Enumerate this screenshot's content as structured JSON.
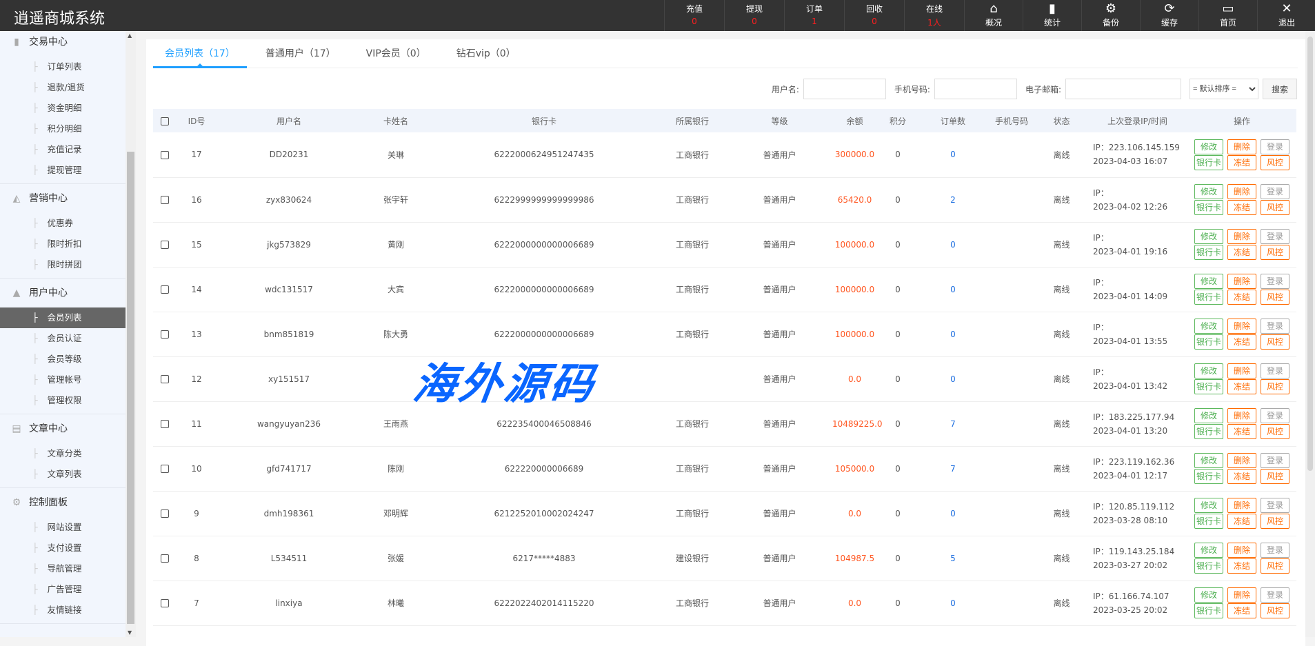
{
  "app": {
    "title": "逍遥商城系统"
  },
  "header": {
    "stats": [
      {
        "label": "充值",
        "value": "0"
      },
      {
        "label": "提现",
        "value": "0"
      },
      {
        "label": "订单",
        "value": "1"
      },
      {
        "label": "回收",
        "value": "0"
      },
      {
        "label": "在线",
        "value": "1人"
      }
    ],
    "buttons": [
      {
        "label": "概况",
        "icon": "home-icon",
        "glyph": "⌂"
      },
      {
        "label": "统计",
        "icon": "bar-chart-icon",
        "glyph": "▮"
      },
      {
        "label": "备份",
        "icon": "gear-icon",
        "glyph": "⚙"
      },
      {
        "label": "缓存",
        "icon": "refresh-icon",
        "glyph": "⟳"
      },
      {
        "label": "首页",
        "icon": "monitor-icon",
        "glyph": "▭"
      },
      {
        "label": "退出",
        "icon": "close-icon",
        "glyph": "✕"
      }
    ]
  },
  "sidebar": {
    "groups": [
      {
        "title": "交易中心",
        "icon": "bar-chart-icon",
        "glyph": "▮",
        "items": [
          "订单列表",
          "退款/退货",
          "资金明细",
          "积分明细",
          "充值记录",
          "提现管理"
        ]
      },
      {
        "title": "营销中心",
        "icon": "trend-chart-icon",
        "glyph": "◭",
        "items": [
          "优惠券",
          "限时折扣",
          "限时拼团"
        ]
      },
      {
        "title": "用户中心",
        "icon": "user-icon",
        "glyph": "▲",
        "items": [
          "会员列表",
          "会员认证",
          "会员等级",
          "管理帐号",
          "管理权限"
        ],
        "active": "会员列表"
      },
      {
        "title": "文章中心",
        "icon": "document-icon",
        "glyph": "▤",
        "items": [
          "文章分类",
          "文章列表"
        ]
      },
      {
        "title": "控制面板",
        "icon": "gear-icon",
        "glyph": "⚙",
        "items": [
          "网站设置",
          "支付设置",
          "导航管理",
          "广告管理",
          "友情链接"
        ]
      }
    ]
  },
  "tabs": [
    {
      "label": "会员列表（17）",
      "active": true
    },
    {
      "label": "普通用户（17）"
    },
    {
      "label": "VIP会员（0）"
    },
    {
      "label": "钻石vip（0）"
    }
  ],
  "search": {
    "username_label": "用户名:",
    "phone_label": "手机号码:",
    "email_label": "电子邮箱:",
    "username": "",
    "phone": "",
    "email": "",
    "sort": "= 默认排序 =",
    "button": "搜索"
  },
  "table": {
    "columns": [
      "ID号",
      "用户名",
      "卡姓名",
      "银行卡",
      "所属银行",
      "等级",
      "余额",
      "积分",
      "订单数",
      "手机号码",
      "状态",
      "上次登录IP/时间",
      "操作"
    ],
    "actions": [
      "修改",
      "删除",
      "登录",
      "银行卡",
      "冻结",
      "风控"
    ],
    "rows": [
      {
        "id": "17",
        "user": "DD20231",
        "name": "关琳",
        "card": "6222000624951247435",
        "bank": "工商银行",
        "level": "普通用户",
        "balance": "300000.0",
        "points": "0",
        "orders": "0",
        "phone": "",
        "status": "离线",
        "ip": "IP：223.106.145.159",
        "time": "2023-04-03 16:07"
      },
      {
        "id": "16",
        "user": "zyx830624",
        "name": "张宇轩",
        "card": "6222999999999999986",
        "bank": "工商银行",
        "level": "普通用户",
        "balance": "65420.0",
        "points": "0",
        "orders": "2",
        "phone": "",
        "status": "离线",
        "ip": "IP：",
        "time": "2023-04-02 12:26"
      },
      {
        "id": "15",
        "user": "jkg573829",
        "name": "黄刚",
        "card": "6222000000000006689",
        "bank": "工商银行",
        "level": "普通用户",
        "balance": "100000.0",
        "points": "0",
        "orders": "0",
        "phone": "",
        "status": "离线",
        "ip": "IP：",
        "time": "2023-04-01 19:16"
      },
      {
        "id": "14",
        "user": "wdc131517",
        "name": "大宾",
        "card": "6222000000000006689",
        "bank": "工商银行",
        "level": "普通用户",
        "balance": "100000.0",
        "points": "0",
        "orders": "0",
        "phone": "",
        "status": "离线",
        "ip": "IP：",
        "time": "2023-04-01 14:09"
      },
      {
        "id": "13",
        "user": "bnm851819",
        "name": "陈大勇",
        "card": "6222000000000006689",
        "bank": "工商银行",
        "level": "普通用户",
        "balance": "100000.0",
        "points": "0",
        "orders": "0",
        "phone": "",
        "status": "离线",
        "ip": "IP：",
        "time": "2023-04-01 13:55"
      },
      {
        "id": "12",
        "user": "xy151517",
        "name": "",
        "card": "",
        "bank": "",
        "level": "普通用户",
        "balance": "0.0",
        "points": "0",
        "orders": "0",
        "phone": "",
        "status": "离线",
        "ip": "IP：",
        "time": "2023-04-01 13:42"
      },
      {
        "id": "11",
        "user": "wangyuyan236",
        "name": "王雨燕",
        "card": "622235400046508846",
        "bank": "工商银行",
        "level": "普通用户",
        "balance": "10489225.0",
        "points": "0",
        "orders": "7",
        "phone": "",
        "status": "离线",
        "ip": "IP：183.225.177.94",
        "time": "2023-04-01 13:20"
      },
      {
        "id": "10",
        "user": "gfd741717",
        "name": "陈刚",
        "card": "622220000006689",
        "bank": "工商银行",
        "level": "普通用户",
        "balance": "105000.0",
        "points": "0",
        "orders": "7",
        "phone": "",
        "status": "离线",
        "ip": "IP：223.119.162.36",
        "time": "2023-04-01 12:17"
      },
      {
        "id": "9",
        "user": "dmh198361",
        "name": "邓明辉",
        "card": "6212252010002024247",
        "bank": "工商银行",
        "level": "普通用户",
        "balance": "0.0",
        "points": "0",
        "orders": "0",
        "phone": "",
        "status": "离线",
        "ip": "IP：120.85.119.112",
        "time": "2023-03-28 08:10"
      },
      {
        "id": "8",
        "user": "L534511",
        "name": "张媛",
        "card": "6217*****4883",
        "bank": "建设银行",
        "level": "普通用户",
        "balance": "104987.5",
        "points": "0",
        "orders": "5",
        "phone": "",
        "status": "离线",
        "ip": "IP：119.143.25.184",
        "time": "2023-03-27 20:02"
      },
      {
        "id": "7",
        "user": "linxiya",
        "name": "林曦",
        "card": "6222022402014115220",
        "bank": "工商银行",
        "level": "普通用户",
        "balance": "0.0",
        "points": "0",
        "orders": "0",
        "phone": "",
        "status": "离线",
        "ip": "IP：61.166.74.107",
        "time": "2023-03-25 20:02"
      }
    ]
  },
  "watermark": "海外源码",
  "colors": {
    "accent": "#1e9fff",
    "balance": "#ff5722",
    "orders": "#1e6fe0",
    "header_bg": "#333333",
    "edit": "#5cb85c",
    "danger": "#ff6a00"
  }
}
